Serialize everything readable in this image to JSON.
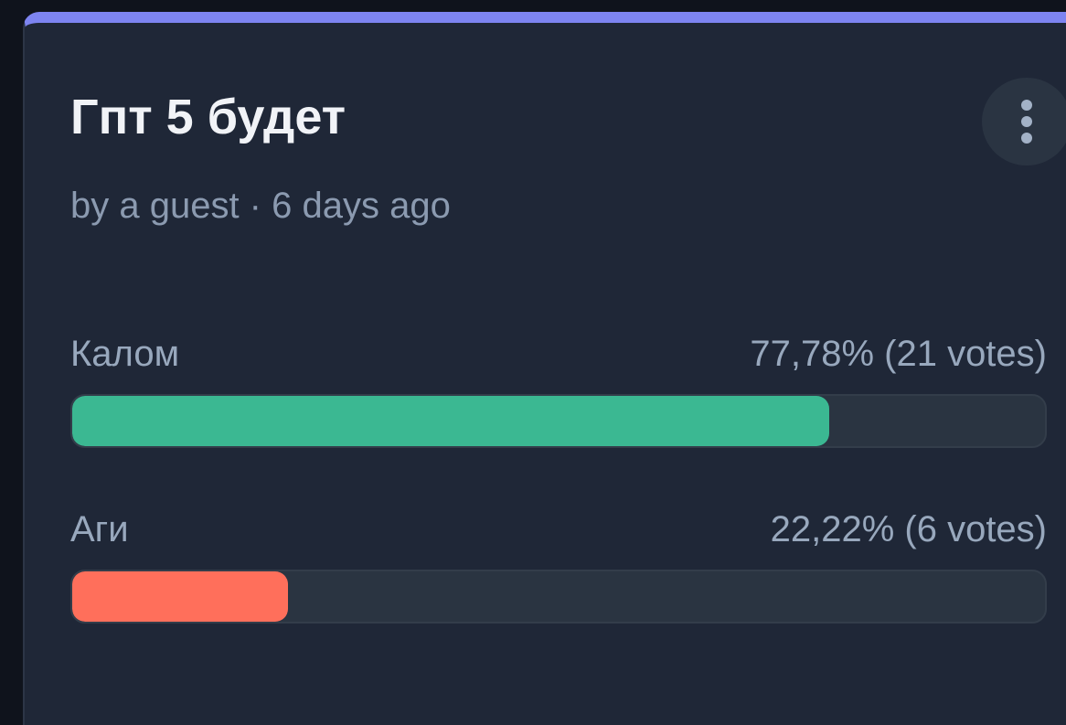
{
  "poll": {
    "title": "Гпт 5 будет",
    "meta": "by a guest · 6 days ago",
    "menu_icon": "more-vertical-icon",
    "accent_color": "#7d84f1",
    "options": [
      {
        "label": "Калом",
        "result": "77,78% (21 votes)",
        "percent": 77.78,
        "votes": 21,
        "color": "#3bb892"
      },
      {
        "label": "Аги",
        "result": "22,22% (6 votes)",
        "percent": 22.22,
        "votes": 6,
        "color": "#ff6f5b"
      }
    ]
  }
}
